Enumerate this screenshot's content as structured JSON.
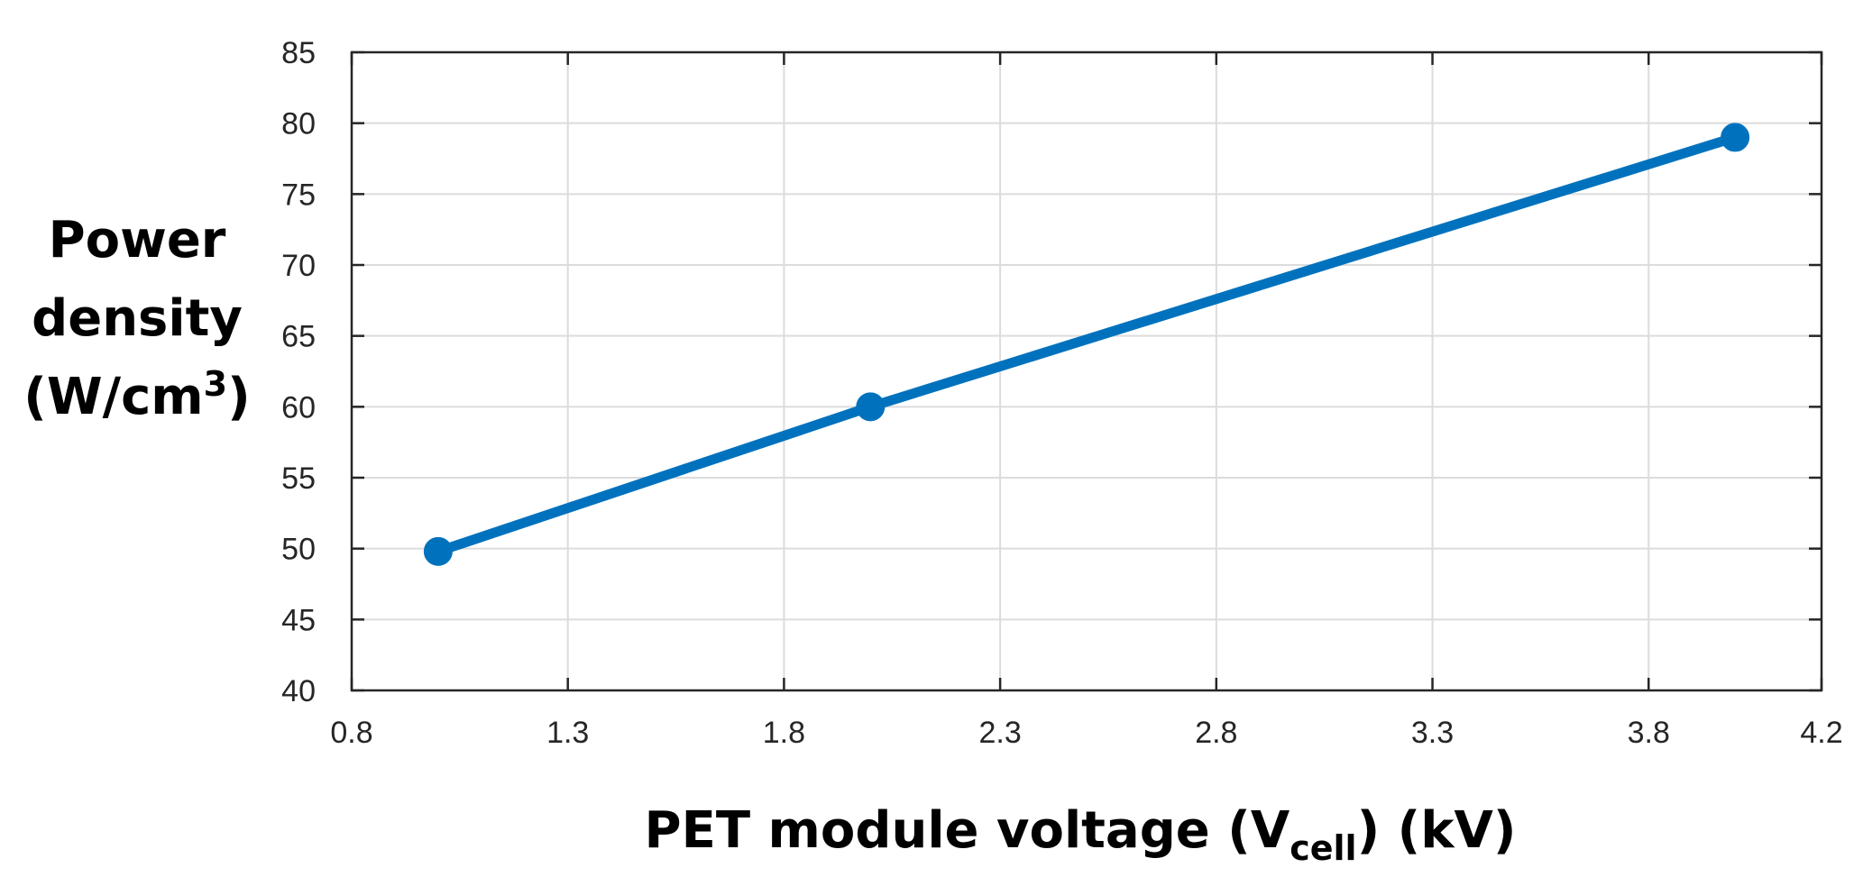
{
  "chart_data": {
    "type": "line",
    "title": "",
    "xlabel": {
      "main": "PET module voltage (V",
      "subscript": "cell",
      "tail": ") (kV)"
    },
    "ylabel": {
      "line1": "Power",
      "line2": "density",
      "line3_main": "(W/cm",
      "line3_sup": "3",
      "line3_tail": ")"
    },
    "xlim": [
      0.8,
      4.2
    ],
    "ylim": [
      40,
      85
    ],
    "xticks": [
      "0.8",
      "1.3",
      "1.8",
      "2.3",
      "2.8",
      "3.3",
      "3.8",
      "4.2"
    ],
    "xtick_values": [
      0.8,
      1.3,
      1.8,
      2.3,
      2.8,
      3.3,
      3.8,
      4.2
    ],
    "yticks": [
      "40",
      "45",
      "50",
      "55",
      "60",
      "65",
      "70",
      "75",
      "80",
      "85"
    ],
    "ytick_values": [
      40,
      45,
      50,
      55,
      60,
      65,
      70,
      75,
      80,
      85
    ],
    "grid": true,
    "series": [
      {
        "x": [
          1.0,
          2.0,
          4.0
        ],
        "y": [
          49.8,
          60.0,
          79.0
        ],
        "color": "#0072BD",
        "marker": "circle"
      }
    ]
  }
}
